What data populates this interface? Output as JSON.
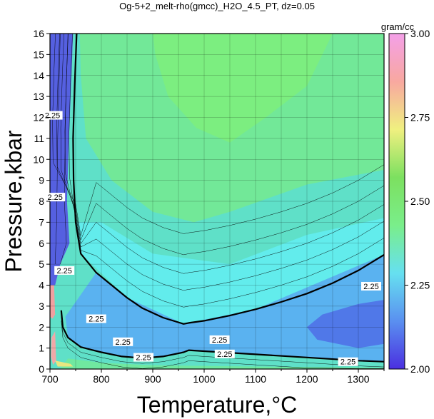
{
  "chart_data": {
    "type": "heatmap",
    "title": "Og-5+2_melt-rho(gmcc)_H2O_4.5_PT, dz=0.05",
    "xlabel": "Temperature,°C",
    "ylabel": "Pressure,kbar",
    "xlim": [
      700,
      1350
    ],
    "ylim": [
      0,
      16
    ],
    "x_ticks": [
      700,
      800,
      900,
      1000,
      1100,
      1200,
      1300
    ],
    "y_ticks": [
      0,
      1,
      2,
      3,
      4,
      5,
      6,
      7,
      8,
      9,
      10,
      11,
      12,
      13,
      14,
      15,
      16
    ],
    "grid": true,
    "colorbar": {
      "label": "gram/cc",
      "range": [
        2.0,
        3.0
      ],
      "ticks": [
        "2.00",
        "2.25",
        "2.50",
        "2.75",
        "3.00"
      ],
      "colors": [
        "#4a2fe0",
        "#5a90f0",
        "#66e0f0",
        "#7aee8a",
        "#7ce060",
        "#f0f080",
        "#f8a8a0",
        "#f4a0e8"
      ]
    },
    "contour_interval": 0.05,
    "labeled_contour": {
      "value": "2.25",
      "branches": [
        {
          "name": "upper",
          "points": [
            [
              752,
              16
            ],
            [
              748,
              13.5
            ],
            [
              745,
              11
            ],
            [
              746,
              9
            ],
            [
              750,
              7
            ],
            [
              760,
              5.5
            ],
            [
              790,
              4.6
            ],
            [
              820,
              4.0
            ],
            [
              850,
              3.4
            ],
            [
              880,
              2.9
            ],
            [
              920,
              2.45
            ],
            [
              960,
              2.15
            ],
            [
              970,
              2.2
            ],
            [
              1000,
              2.3
            ],
            [
              1050,
              2.55
            ],
            [
              1100,
              2.85
            ],
            [
              1150,
              3.2
            ],
            [
              1200,
              3.6
            ],
            [
              1250,
              4.1
            ],
            [
              1300,
              4.7
            ],
            [
              1350,
              5.45
            ]
          ]
        },
        {
          "name": "lower",
          "points": [
            [
              722,
              2.8
            ],
            [
              725,
              2.0
            ],
            [
              735,
              1.5
            ],
            [
              760,
              1.05
            ],
            [
              800,
              0.8
            ],
            [
              840,
              0.6
            ],
            [
              880,
              0.52
            ],
            [
              920,
              0.6
            ],
            [
              960,
              0.8
            ],
            [
              970,
              0.9
            ],
            [
              1000,
              0.85
            ],
            [
              1100,
              0.7
            ],
            [
              1200,
              0.55
            ],
            [
              1300,
              0.4
            ],
            [
              1350,
              0.35
            ]
          ]
        }
      ],
      "label_positions": [
        [
          705,
          12.1
        ],
        [
          710,
          8.2
        ],
        [
          728,
          4.7
        ],
        [
          790,
          2.4
        ],
        [
          842,
          1.3
        ],
        [
          882,
          0.56
        ],
        [
          1030,
          1.4
        ],
        [
          1040,
          0.72
        ],
        [
          1280,
          0.35
        ],
        [
          1325,
          3.95
        ]
      ]
    }
  }
}
